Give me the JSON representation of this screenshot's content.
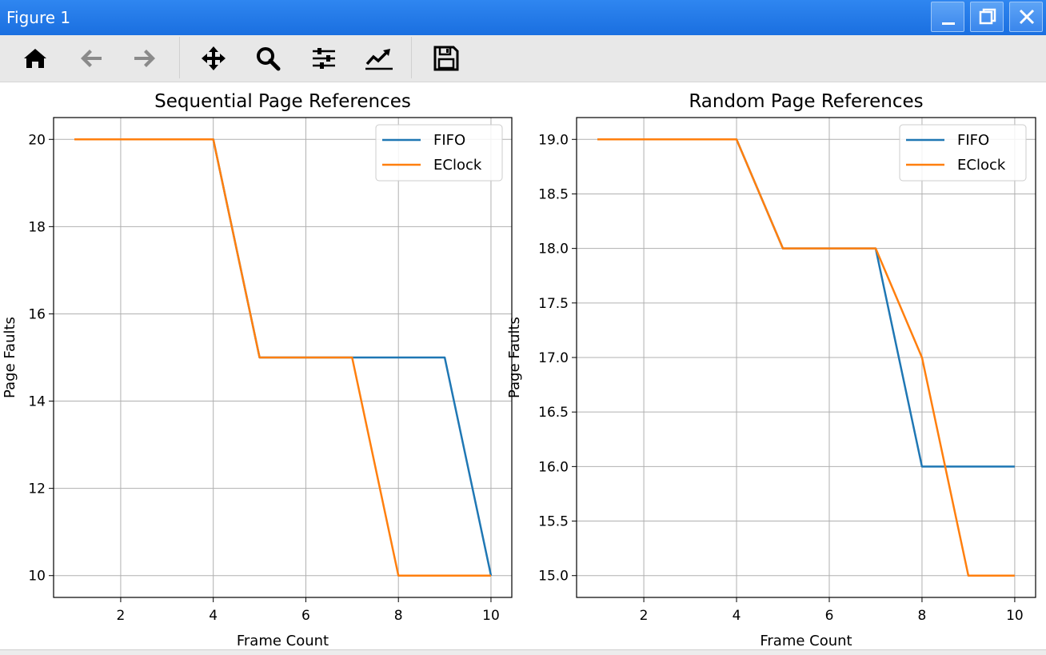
{
  "window": {
    "title": "Figure 1"
  },
  "window_controls": [
    "minimize",
    "maximize",
    "close"
  ],
  "toolbar": {
    "icons": [
      "home-icon",
      "back-icon",
      "forward-icon",
      "pan-icon",
      "zoom-icon",
      "configure-subplots-icon",
      "edit-axis-icon",
      "save-icon"
    ]
  },
  "colors": {
    "titlebar": "#1f73e4",
    "fifo": "#1f77b4",
    "eclock": "#ff7f0e",
    "grid": "#b0b0b0"
  },
  "chart_data": [
    {
      "type": "line",
      "title": "Sequential Page References",
      "xlabel": "Frame Count",
      "ylabel": "Page Faults",
      "xlim": [
        0.55,
        10.45
      ],
      "ylim": [
        9.5,
        20.5
      ],
      "xticks": [
        2,
        4,
        6,
        8,
        10
      ],
      "xtick_labels": [
        "2",
        "4",
        "6",
        "8",
        "10"
      ],
      "yticks": [
        10,
        12,
        14,
        16,
        18,
        20
      ],
      "ytick_labels": [
        "10",
        "12",
        "14",
        "16",
        "18",
        "20"
      ],
      "grid": true,
      "legend": "upper right",
      "x": [
        1,
        2,
        3,
        4,
        5,
        6,
        7,
        8,
        9,
        10
      ],
      "series": [
        {
          "name": "FIFO",
          "values": [
            20,
            20,
            20,
            20,
            15,
            15,
            15,
            15,
            15,
            10
          ]
        },
        {
          "name": "EClock",
          "values": [
            20,
            20,
            20,
            20,
            15,
            15,
            15,
            10,
            10,
            10
          ]
        }
      ]
    },
    {
      "type": "line",
      "title": "Random Page References",
      "xlabel": "Frame Count",
      "ylabel": "Page Faults",
      "xlim": [
        0.55,
        10.45
      ],
      "ylim": [
        14.8,
        19.2
      ],
      "xticks": [
        2,
        4,
        6,
        8,
        10
      ],
      "xtick_labels": [
        "2",
        "4",
        "6",
        "8",
        "10"
      ],
      "yticks": [
        15.0,
        15.5,
        16.0,
        16.5,
        17.0,
        17.5,
        18.0,
        18.5,
        19.0
      ],
      "ytick_labels": [
        "15.0",
        "15.5",
        "16.0",
        "16.5",
        "17.0",
        "17.5",
        "18.0",
        "18.5",
        "19.0"
      ],
      "grid": true,
      "legend": "upper right",
      "x": [
        1,
        2,
        3,
        4,
        5,
        6,
        7,
        8,
        9,
        10
      ],
      "series": [
        {
          "name": "FIFO",
          "values": [
            19,
            19,
            19,
            19,
            18,
            18,
            18,
            16,
            16,
            16
          ]
        },
        {
          "name": "EClock",
          "values": [
            19,
            19,
            19,
            19,
            18,
            18,
            18,
            17,
            15,
            15
          ]
        }
      ]
    }
  ]
}
